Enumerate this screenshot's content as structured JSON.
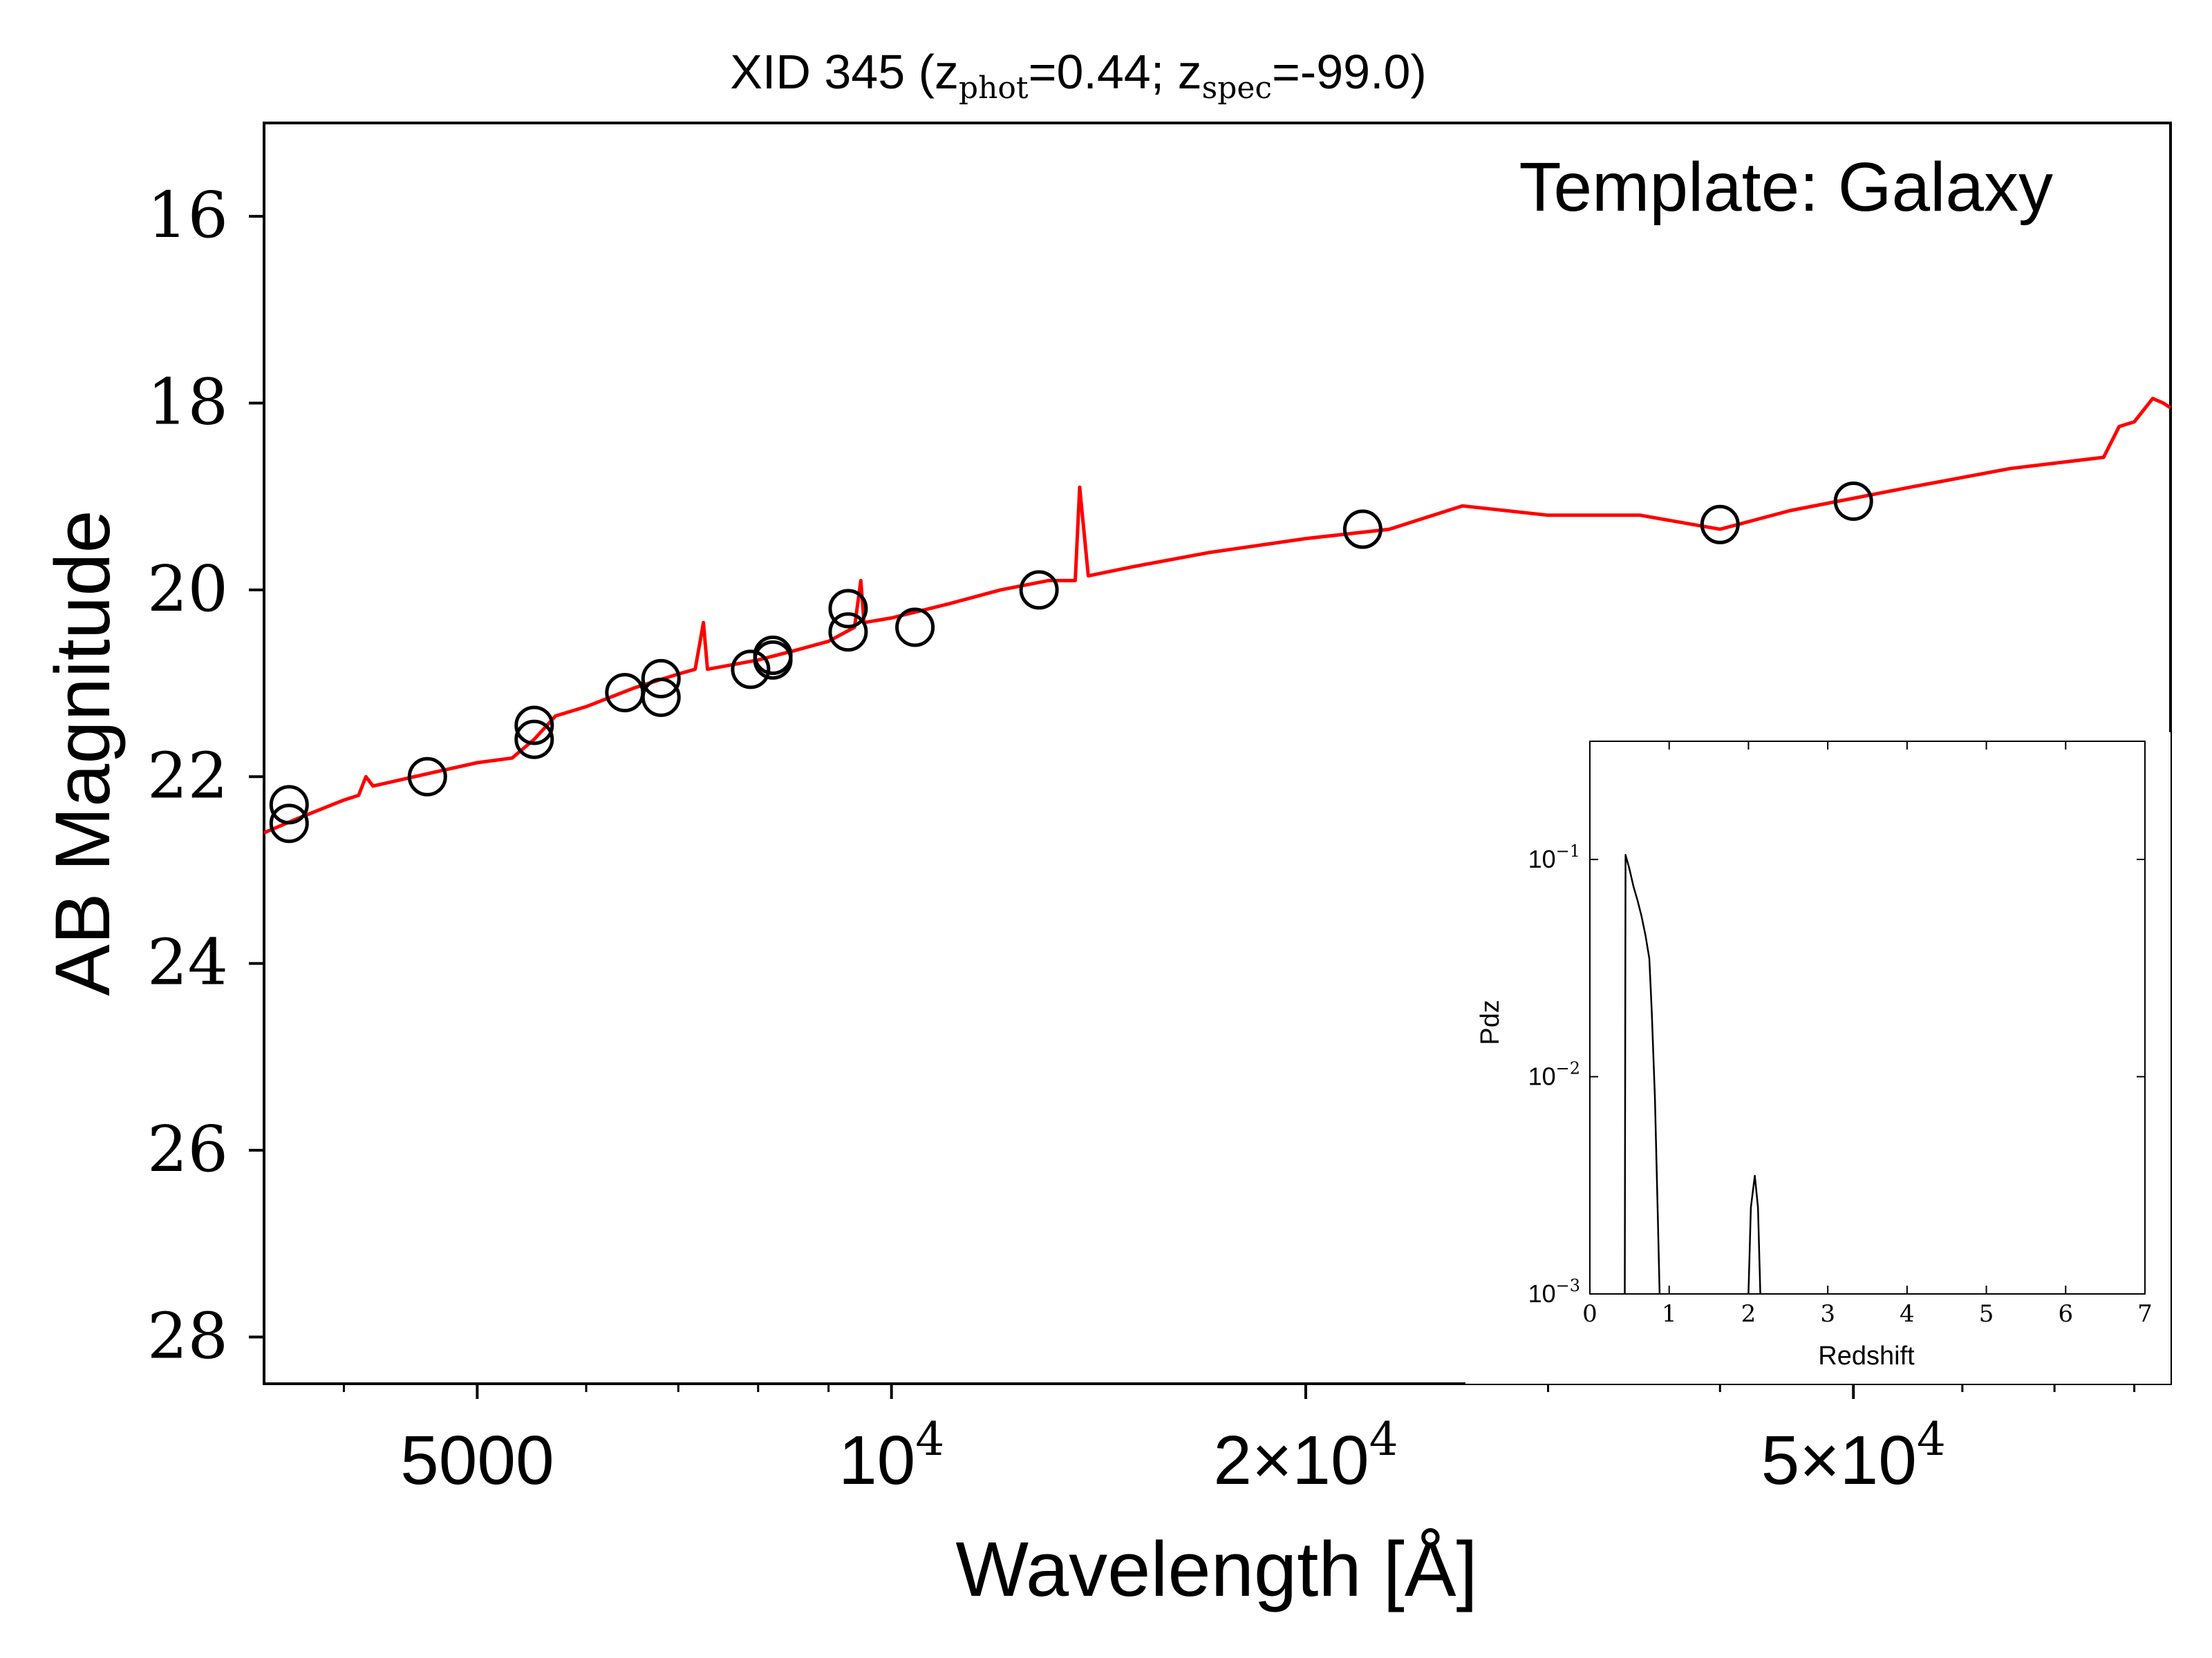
{
  "chart_data": [
    {
      "type": "line",
      "title_parts": {
        "prefix": "XID 345 (z",
        "phot_sub": "phot",
        "phot_val": "=0.44; z",
        "spec_sub": "spec",
        "spec_val": "=-99.0)"
      },
      "xlabel": "Wavelength [Å]",
      "ylabel": "AB Magnitude",
      "annotation": "Template: Galaxy",
      "x_scale": "log",
      "xlim": [
        3500,
        85000
      ],
      "ylim": [
        28.5,
        15
      ],
      "y_inverted": true,
      "grid": false,
      "x_ticks": [
        {
          "value": 5000,
          "mantissa": "5000",
          "exponent": ""
        },
        {
          "value": 10000,
          "mantissa": "10",
          "exponent": "4"
        },
        {
          "value": 20000,
          "mantissa": "2×10",
          "exponent": "4"
        },
        {
          "value": 50000,
          "mantissa": "5×10",
          "exponent": "4"
        }
      ],
      "y_ticks": [
        16,
        18,
        20,
        22,
        24,
        26,
        28
      ],
      "colors": {
        "model": "#ff0000",
        "points": "#000000"
      },
      "series": [
        {
          "kind": "model-line",
          "points": [
            [
              3500,
              22.6
            ],
            [
              3700,
              22.45
            ],
            [
              4000,
              22.25
            ],
            [
              4100,
              22.2
            ],
            [
              4150,
              22.0
            ],
            [
              4200,
              22.1
            ],
            [
              4500,
              22.0
            ],
            [
              5000,
              21.85
            ],
            [
              5300,
              21.8
            ],
            [
              5500,
              21.6
            ],
            [
              5700,
              21.35
            ],
            [
              6000,
              21.25
            ],
            [
              6500,
              21.05
            ],
            [
              7000,
              20.9
            ],
            [
              7200,
              20.85
            ],
            [
              7300,
              20.35
            ],
            [
              7350,
              20.85
            ],
            [
              8000,
              20.75
            ],
            [
              8500,
              20.65
            ],
            [
              9000,
              20.55
            ],
            [
              9400,
              20.4
            ],
            [
              9500,
              19.9
            ],
            [
              9550,
              20.35
            ],
            [
              10000,
              20.3
            ],
            [
              11000,
              20.15
            ],
            [
              12000,
              20.0
            ],
            [
              13000,
              19.9
            ],
            [
              13600,
              19.9
            ],
            [
              13700,
              18.9
            ],
            [
              13900,
              19.85
            ],
            [
              15000,
              19.75
            ],
            [
              17000,
              19.6
            ],
            [
              20000,
              19.45
            ],
            [
              23000,
              19.35
            ],
            [
              26000,
              19.1
            ],
            [
              30000,
              19.2
            ],
            [
              35000,
              19.2
            ],
            [
              40000,
              19.35
            ],
            [
              45000,
              19.15
            ],
            [
              55000,
              18.9
            ],
            [
              65000,
              18.7
            ],
            [
              76000,
              18.58
            ],
            [
              78000,
              18.25
            ],
            [
              80000,
              18.2
            ],
            [
              82500,
              17.95
            ],
            [
              84000,
              18.0
            ],
            [
              85000,
              18.05
            ]
          ]
        },
        {
          "kind": "photometry",
          "points": [
            [
              3650,
              22.3
            ],
            [
              3650,
              22.5
            ],
            [
              4600,
              22.0
            ],
            [
              5500,
              21.45
            ],
            [
              5500,
              21.6
            ],
            [
              6400,
              21.1
            ],
            [
              6800,
              20.95
            ],
            [
              6800,
              21.15
            ],
            [
              7900,
              20.85
            ],
            [
              8200,
              20.7
            ],
            [
              8200,
              20.75
            ],
            [
              9300,
              20.2
            ],
            [
              9300,
              20.45
            ],
            [
              10400,
              20.4
            ],
            [
              12800,
              20.0
            ],
            [
              22000,
              19.35
            ],
            [
              40000,
              19.3
            ],
            [
              50000,
              19.05
            ]
          ]
        }
      ]
    },
    {
      "type": "line",
      "xlabel": "Redshift",
      "ylabel": "Pdz",
      "x_scale": "linear",
      "y_scale": "log",
      "xlim": [
        0,
        7
      ],
      "ylim": [
        0.001,
        0.35
      ],
      "x_ticks": [
        "0",
        "1",
        "2",
        "3",
        "4",
        "5",
        "6",
        "7"
      ],
      "y_ticks": [
        {
          "value": 0.1,
          "mantissa": "10",
          "exponent": "−1"
        },
        {
          "value": 0.01,
          "mantissa": "10",
          "exponent": "−2"
        },
        {
          "value": 0.001,
          "mantissa": "10",
          "exponent": "−3"
        }
      ],
      "series": [
        {
          "kind": "pdz",
          "points": [
            [
              0.44,
              0.001
            ],
            [
              0.45,
              0.105
            ],
            [
              0.5,
              0.09
            ],
            [
              0.55,
              0.075
            ],
            [
              0.6,
              0.065
            ],
            [
              0.65,
              0.055
            ],
            [
              0.7,
              0.045
            ],
            [
              0.75,
              0.035
            ],
            [
              0.78,
              0.02
            ],
            [
              0.82,
              0.008
            ],
            [
              0.86,
              0.002
            ],
            [
              0.88,
              0.001
            ],
            [
              2.0,
              0.001
            ],
            [
              2.03,
              0.0025
            ],
            [
              2.08,
              0.0035
            ],
            [
              2.12,
              0.0025
            ],
            [
              2.15,
              0.001
            ]
          ]
        }
      ]
    }
  ]
}
